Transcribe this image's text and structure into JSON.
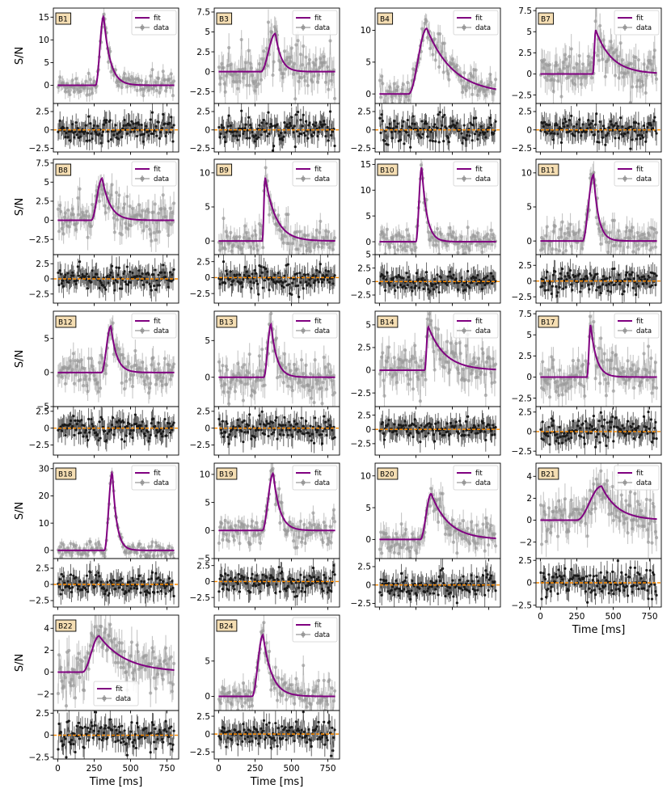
{
  "figure": {
    "ylabel": "S/N",
    "xlabel": "Time [ms]",
    "legend_fit": "fit",
    "legend_data": "data"
  },
  "colors": {
    "fit": "#800080",
    "data": "#999999",
    "residual": "#1a1a1a",
    "zero_line": "#ff8c00",
    "tag_fill": "#f5deb3"
  },
  "chart_data": [
    {
      "type": "line",
      "burst": "B1",
      "xlim": [
        -30,
        830
      ],
      "ylim": [
        -4,
        17
      ],
      "yticks": [
        0,
        5,
        10,
        15
      ],
      "res_ylim": [
        -3,
        3.6
      ],
      "res_yticks": [
        -2.5,
        0,
        2.5
      ],
      "fit": {
        "amp": 15.2,
        "t0": 260,
        "tpk": 315,
        "tau": 45
      },
      "noise": 1.3,
      "legend": "top-right",
      "xtick_labels": false
    },
    {
      "type": "line",
      "burst": "B3",
      "xlim": [
        -30,
        830
      ],
      "ylim": [
        -4,
        8
      ],
      "yticks": [
        -2.5,
        0,
        2.5,
        5,
        7.5
      ],
      "res_ylim": [
        -3,
        3.6
      ],
      "res_yticks": [
        -2.5,
        0,
        2.5
      ],
      "fit": {
        "amp": 4.8,
        "t0": 290,
        "tpk": 390,
        "tau": 40
      },
      "noise": 1.4,
      "legend": "top-right",
      "xtick_labels": false
    },
    {
      "type": "line",
      "burst": "B4",
      "xlim": [
        -30,
        830
      ],
      "ylim": [
        -1.5,
        13.5
      ],
      "yticks": [
        0,
        5,
        10
      ],
      "res_ylim": [
        -3,
        3.6
      ],
      "res_yticks": [
        -2.5,
        0,
        2.5
      ],
      "fit": {
        "amp": 10.3,
        "t0": 200,
        "tpk": 325,
        "tau": 180
      },
      "noise": 1.2,
      "legend": "top-right",
      "xtick_labels": false
    },
    {
      "type": "line",
      "burst": "B7",
      "xlim": [
        -30,
        830
      ],
      "ylim": [
        -3.5,
        7.8
      ],
      "yticks": [
        -2.5,
        0,
        2.5,
        5,
        7.5
      ],
      "res_ylim": [
        -3,
        3.6
      ],
      "res_yticks": [
        -2.5,
        0,
        2.5
      ],
      "fit": {
        "amp": 5.2,
        "t0": 360,
        "tpk": 380,
        "tau": 110
      },
      "noise": 1.4,
      "legend": "top-right",
      "xtick_labels": false
    },
    {
      "type": "line",
      "burst": "B8",
      "xlim": [
        -30,
        830
      ],
      "ylim": [
        -4.5,
        8
      ],
      "yticks": [
        -2.5,
        0,
        2.5,
        5,
        7.5
      ],
      "res_ylim": [
        -4,
        4
      ],
      "res_yticks": [
        -2.5,
        0,
        2.5
      ],
      "fit": {
        "amp": 5.5,
        "t0": 230,
        "tpk": 305,
        "tau": 55
      },
      "noise": 1.3,
      "legend": "top-right",
      "xtick_labels": false
    },
    {
      "type": "line",
      "burst": "B9",
      "xlim": [
        -30,
        830
      ],
      "ylim": [
        -2,
        12
      ],
      "yticks": [
        0,
        5,
        10
      ],
      "res_ylim": [
        -4,
        3.6
      ],
      "res_yticks": [
        -2.5,
        0,
        2.5
      ],
      "fit": {
        "amp": 9.3,
        "t0": 300,
        "tpk": 320,
        "tau": 75
      },
      "noise": 1.2,
      "legend": "top-right",
      "xtick_labels": false
    },
    {
      "type": "line",
      "burst": "B10",
      "xlim": [
        -30,
        830
      ],
      "ylim": [
        -2.5,
        16
      ],
      "yticks": [
        0,
        5,
        10,
        15
      ],
      "res_ylim": [
        -4,
        5
      ],
      "res_yticks": [
        -2.5,
        0,
        2.5,
        5
      ],
      "fit": {
        "amp": 14.5,
        "t0": 250,
        "tpk": 290,
        "tau": 35
      },
      "noise": 1.3,
      "legend": "top-right",
      "xtick_labels": false
    },
    {
      "type": "line",
      "burst": "B11",
      "xlim": [
        -30,
        830
      ],
      "ylim": [
        -2,
        12
      ],
      "yticks": [
        0,
        5,
        10
      ],
      "res_ylim": [
        -3.5,
        4.2
      ],
      "res_yticks": [
        -2.5,
        0,
        2.5
      ],
      "fit": {
        "amp": 9.7,
        "t0": 290,
        "tpk": 365,
        "tau": 35
      },
      "noise": 1.3,
      "legend": "top-right",
      "xtick_labels": false
    },
    {
      "type": "line",
      "burst": "B12",
      "xlim": [
        -30,
        830
      ],
      "ylim": [
        -5,
        9
      ],
      "yticks": [
        -5,
        0,
        5
      ],
      "res_ylim": [
        -4,
        3.2
      ],
      "res_yticks": [
        -2.5,
        0,
        2.5
      ],
      "fit": {
        "amp": 6.8,
        "t0": 300,
        "tpk": 365,
        "tau": 40
      },
      "noise": 1.4,
      "legend": "top-right",
      "xtick_labels": false
    },
    {
      "type": "line",
      "burst": "B13",
      "xlim": [
        -30,
        830
      ],
      "ylim": [
        -4,
        9
      ],
      "yticks": [
        0,
        5
      ],
      "res_ylim": [
        -4,
        3.2
      ],
      "res_yticks": [
        -2.5,
        0,
        2.5
      ],
      "fit": {
        "amp": 7.2,
        "t0": 310,
        "tpk": 360,
        "tau": 40
      },
      "noise": 1.4,
      "legend": "top-right",
      "xtick_labels": false
    },
    {
      "type": "line",
      "burst": "B14",
      "xlim": [
        -30,
        830
      ],
      "ylim": [
        -4,
        6.5
      ],
      "yticks": [
        -2.5,
        0,
        2.5,
        5
      ],
      "res_ylim": [
        -4.5,
        4
      ],
      "res_yticks": [
        -2.5,
        0,
        2.5
      ],
      "fit": {
        "amp": 4.8,
        "t0": 310,
        "tpk": 335,
        "tau": 115
      },
      "noise": 1.4,
      "legend": "top-right",
      "xtick_labels": false
    },
    {
      "type": "line",
      "burst": "B17",
      "xlim": [
        -30,
        830
      ],
      "ylim": [
        -3.5,
        7.8
      ],
      "yticks": [
        -2.5,
        0,
        2.5,
        5,
        7.5
      ],
      "res_ylim": [
        -3,
        3.2
      ],
      "res_yticks": [
        -2.5,
        0,
        2.5
      ],
      "fit": {
        "amp": 6.2,
        "t0": 320,
        "tpk": 345,
        "tau": 40
      },
      "noise": 1.3,
      "legend": "top-right",
      "xtick_labels": false
    },
    {
      "type": "line",
      "burst": "B18",
      "xlim": [
        -30,
        830
      ],
      "ylim": [
        -3,
        32
      ],
      "yticks": [
        0,
        10,
        20,
        30
      ],
      "res_ylim": [
        -3.5,
        4
      ],
      "res_yticks": [
        -2.5,
        0,
        2.5
      ],
      "fit": {
        "amp": 28.5,
        "t0": 320,
        "tpk": 375,
        "tau": 30
      },
      "noise": 1.5,
      "legend": "top-right",
      "xtick_labels": false
    },
    {
      "type": "line",
      "burst": "B19",
      "xlim": [
        -30,
        830
      ],
      "ylim": [
        -5,
        12
      ],
      "yticks": [
        -5,
        0,
        5,
        10
      ],
      "res_ylim": [
        -4,
        3.6
      ],
      "res_yticks": [
        -2.5,
        0,
        2.5
      ],
      "fit": {
        "amp": 10.2,
        "t0": 300,
        "tpk": 375,
        "tau": 45
      },
      "noise": 1.3,
      "legend": "top-right",
      "xtick_labels": false
    },
    {
      "type": "line",
      "burst": "B20",
      "xlim": [
        -30,
        830
      ],
      "ylim": [
        -3,
        12
      ],
      "yticks": [
        0,
        5,
        10
      ],
      "res_ylim": [
        -3,
        3.6
      ],
      "res_yticks": [
        -2.5,
        0,
        2.5
      ],
      "fit": {
        "amp": 7.2,
        "t0": 280,
        "tpk": 355,
        "tau": 120
      },
      "noise": 1.4,
      "legend": "top-right",
      "xtick_labels": false
    },
    {
      "type": "line",
      "burst": "B21",
      "xlim": [
        -30,
        830
      ],
      "ylim": [
        -3.5,
        5.2
      ],
      "yticks": [
        -2,
        0,
        2,
        4
      ],
      "res_ylim": [
        -2.7,
        2.7
      ],
      "res_yticks": [
        -2.5,
        0,
        2.5
      ],
      "fit": {
        "amp": 3.1,
        "t0": 250,
        "tpk": 420,
        "tau": 110
      },
      "noise": 1.1,
      "legend": "top-right",
      "xtick_labels": true
    },
    {
      "type": "line",
      "burst": "B22",
      "xlim": [
        -30,
        830
      ],
      "ylim": [
        -3.5,
        5.2
      ],
      "yticks": [
        -2,
        0,
        2,
        4
      ],
      "res_ylim": [
        -2.7,
        2.8
      ],
      "res_yticks": [
        -2.5,
        0,
        2.5
      ],
      "fit": {
        "amp": 3.3,
        "t0": 170,
        "tpk": 285,
        "tau": 180
      },
      "noise": 1.1,
      "legend": "bottom-center",
      "xtick_labels": true
    },
    {
      "type": "line",
      "burst": "B24",
      "xlim": [
        -30,
        830
      ],
      "ylim": [
        -2,
        11.5
      ],
      "yticks": [
        0,
        5
      ],
      "res_ylim": [
        -3.5,
        3.3
      ],
      "res_yticks": [
        -2.5,
        0,
        2.5
      ],
      "fit": {
        "amp": 8.7,
        "t0": 230,
        "tpk": 305,
        "tau": 60
      },
      "noise": 1.2,
      "legend": "top-right",
      "xtick_labels": true
    }
  ]
}
